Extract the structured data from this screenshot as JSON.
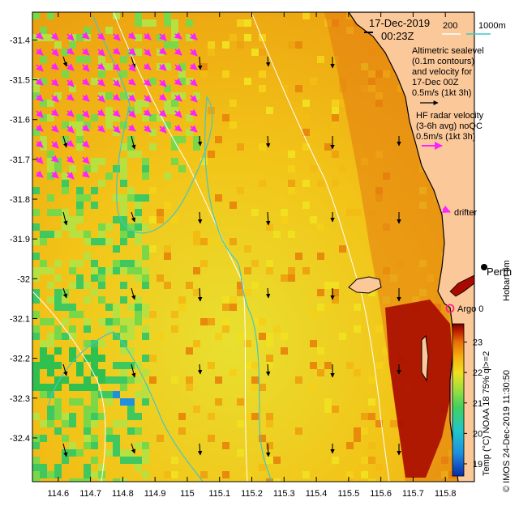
{
  "title": {
    "date": "17-Dec-2019",
    "time": "00:23Z"
  },
  "bathymetry_legend": {
    "label_200": "200",
    "label_1000": "1000m",
    "color_200": "#ffffff",
    "color_1000": "#3fc8c8"
  },
  "legend_text": {
    "altimetric": [
      "Altimetric sealevel",
      "(0.1m contours)",
      "and velocity for",
      "17-Dec 00Z",
      "0.5m/s (1kt 3h)"
    ],
    "hf_radar": [
      "HF radar velocity",
      "(3-6h avg) noQC",
      "0.5m/s (1kt 3h)"
    ],
    "drifter": "drifter",
    "argo": "Argo 0",
    "city": "Perth",
    "credit": "Hobart tim",
    "arrow_color_alt": "#000000",
    "arrow_color_hf": "#ff22ff",
    "argo_color": "#ff2288"
  },
  "axes": {
    "x_ticks": [
      "114.6",
      "114.7",
      "114.8",
      "114.9",
      "115",
      "115.1",
      "115.2",
      "115.3",
      "115.4",
      "115.5",
      "115.6",
      "115.7",
      "115.8"
    ],
    "y_ticks": [
      "-31.4",
      "-31.5",
      "-31.6",
      "-31.7",
      "-31.8",
      "-31.9",
      "-32",
      "-32.1",
      "-32.2",
      "-32.3",
      "-32.4"
    ],
    "lon_range": [
      114.52,
      115.89
    ],
    "lat_range": [
      -32.51,
      -31.33
    ]
  },
  "colorbar": {
    "ticks": [
      "19",
      "20",
      "21",
      "22",
      "23"
    ],
    "range": [
      18.6,
      23.6
    ],
    "label": "Temp (°C) NOAA 18 75% ql>=2",
    "credit": "© IMOS 24-Dec-2019 11:30:50",
    "colors": [
      "#0a2aa8",
      "#1f8fe0",
      "#20c8c8",
      "#40d060",
      "#a8e038",
      "#f0e020",
      "#f8b010",
      "#e87008",
      "#c02000",
      "#7a0000"
    ]
  },
  "land_color": "#fbc899"
}
